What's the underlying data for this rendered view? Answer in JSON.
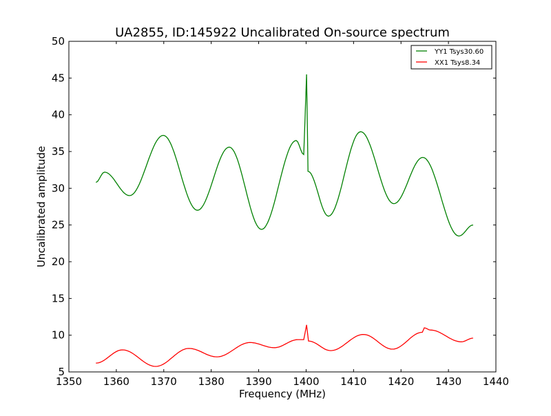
{
  "chart_data": {
    "type": "line",
    "title": "UA2855, ID:145922 Uncalibrated On-source spectrum",
    "xlabel": "Frequency (MHz)",
    "ylabel": "Uncalibrated amplitude",
    "xlim": [
      1350,
      1440
    ],
    "ylim": [
      5,
      50
    ],
    "xticks": [
      1350,
      1360,
      1370,
      1380,
      1390,
      1400,
      1410,
      1420,
      1430,
      1440
    ],
    "yticks": [
      5,
      10,
      15,
      20,
      25,
      30,
      35,
      40,
      45,
      50
    ],
    "grid": false,
    "legend_position": "top-right",
    "series": [
      {
        "name": "YY1 Tsys30.60",
        "color": "#008000",
        "x": [
          1355.7,
          1357.5,
          1362.8,
          1369.9,
          1377.1,
          1383.8,
          1390.6,
          1397.9,
          1399.5,
          1400.1,
          1400.4,
          1404.7,
          1411.5,
          1418.5,
          1424.6,
          1432.2,
          1435.2
        ],
        "y": [
          30.8,
          32.2,
          29.0,
          37.2,
          27.0,
          35.6,
          24.4,
          36.5,
          34.6,
          45.5,
          32.3,
          26.2,
          37.7,
          27.9,
          34.2,
          23.5,
          25.0
        ]
      },
      {
        "name": "XX1 Tsys8.34",
        "color": "#ff0000",
        "x": [
          1355.7,
          1361.3,
          1368.3,
          1375.3,
          1381.2,
          1388.2,
          1393.3,
          1398.3,
          1399.5,
          1400.1,
          1400.5,
          1405.2,
          1412.1,
          1418.2,
          1424.5,
          1424.9,
          1426.2,
          1432.7,
          1435.2
        ],
        "y": [
          6.2,
          8.0,
          5.75,
          8.2,
          7.05,
          9.0,
          8.3,
          9.4,
          9.4,
          11.4,
          9.2,
          7.9,
          10.1,
          8.1,
          10.4,
          11.0,
          10.7,
          9.1,
          9.6
        ]
      }
    ]
  }
}
